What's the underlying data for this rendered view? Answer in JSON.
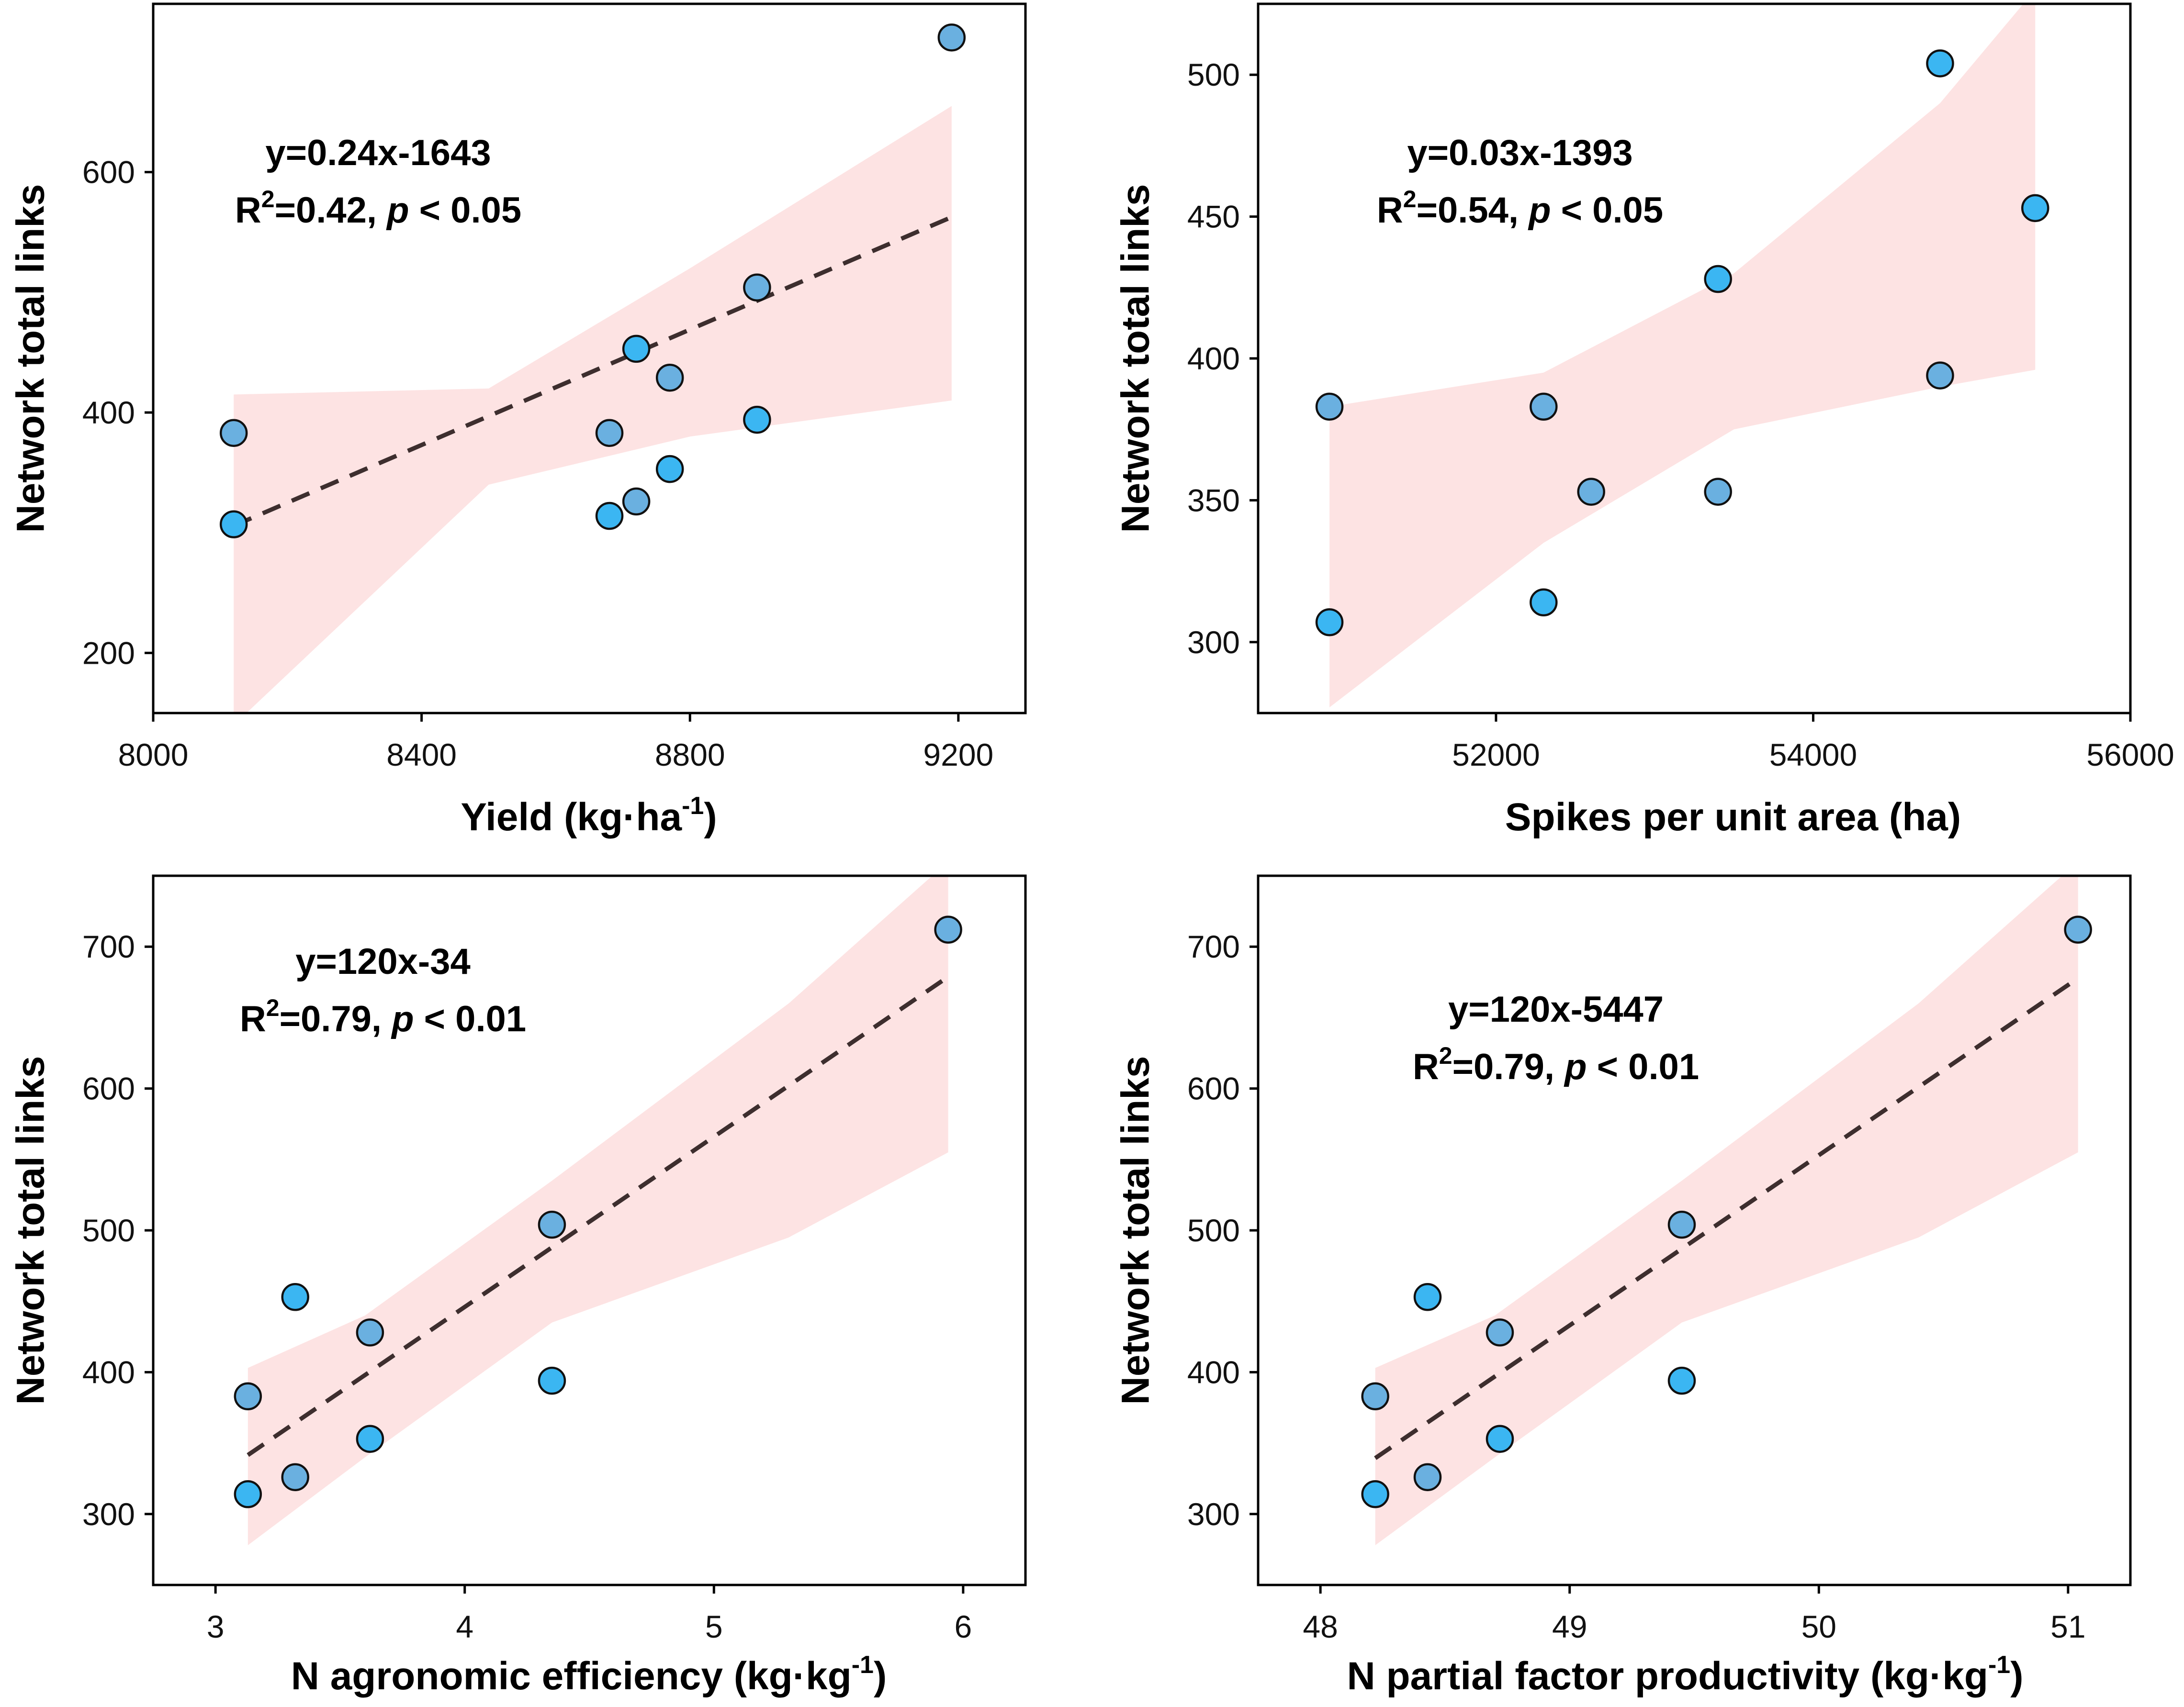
{
  "chart_data": [
    {
      "type": "scatter",
      "title": "",
      "xlabel": "Yield (kg·ha",
      "xlabel_sup": "-1",
      "xlabel_tail": ")",
      "ylabel": "Network total links",
      "xlim": [
        8000,
        9300
      ],
      "ylim": [
        150,
        740
      ],
      "xticks": [
        8000,
        8400,
        8800,
        9200
      ],
      "yticks": [
        200,
        400,
        600
      ],
      "equation": "y=0.24x-1643",
      "r2_prefix": "R",
      "r2_sup": "2",
      "r2_value": "=0.42, ",
      "p_label": "p",
      "p_value": " < 0.05",
      "fit": {
        "slope": 0.24,
        "intercept": -1643,
        "x_range": [
          8120,
          9190
        ]
      },
      "ci": {
        "x": [
          8120,
          8500,
          8800,
          9190
        ],
        "upper": [
          415,
          420,
          520,
          655
        ],
        "lower": [
          140,
          340,
          380,
          410
        ]
      },
      "points": {
        "x": [
          8120,
          8120,
          8680,
          8680,
          8720,
          8720,
          8770,
          8770,
          8900,
          8900,
          9190
        ],
        "y": [
          383,
          307,
          383,
          314,
          326,
          453,
          429,
          353,
          504,
          394,
          712
        ]
      }
    },
    {
      "type": "scatter",
      "title": "",
      "xlabel": "Spikes per unit area (ha)",
      "xlabel_sup": "",
      "xlabel_tail": "",
      "ylabel": "Network total links",
      "xlim": [
        50500,
        56000
      ],
      "ylim": [
        275,
        525
      ],
      "xticks": [
        52000,
        54000,
        56000
      ],
      "yticks": [
        300,
        350,
        400,
        450,
        500
      ],
      "equation": "y=0.03x-1393",
      "r2_prefix": "R",
      "r2_sup": "2",
      "r2_value": "=0.54, ",
      "p_label": "p",
      "p_value": " < 0.05",
      "fit": {
        "slope": 0.03,
        "intercept": -1393,
        "x_range": [
          50950,
          55400
        ]
      },
      "ci": {
        "x": [
          50950,
          52300,
          53500,
          54800,
          55400
        ],
        "upper": [
          383,
          395,
          430,
          490,
          530
        ],
        "lower": [
          277,
          335,
          375,
          390,
          396
        ]
      },
      "points": {
        "x": [
          50950,
          50950,
          52300,
          52300,
          52600,
          53400,
          53400,
          54800,
          54800,
          55400
        ],
        "y": [
          383,
          307,
          383,
          314,
          353,
          428,
          353,
          504,
          394,
          453
        ]
      }
    },
    {
      "type": "scatter",
      "title": "",
      "xlabel": "N agronomic efficiency  (kg·kg",
      "xlabel_sup": "-1",
      "xlabel_tail": ")",
      "ylabel": "Network total links",
      "xlim": [
        2.75,
        6.25
      ],
      "ylim": [
        250,
        750
      ],
      "xticks": [
        3,
        4,
        5,
        6
      ],
      "yticks": [
        300,
        400,
        500,
        600,
        700
      ],
      "equation": "y=120x-34",
      "r2_prefix": "R",
      "r2_sup": "2",
      "r2_value": "=0.79, ",
      "p_label": "p",
      "p_value": " < 0.01",
      "fit": {
        "slope": 120,
        "intercept": -34,
        "x_range": [
          3.13,
          5.94
        ]
      },
      "ci": {
        "x": [
          3.13,
          3.6,
          4.35,
          5.3,
          5.94
        ],
        "upper": [
          403,
          440,
          535,
          660,
          760
        ],
        "lower": [
          278,
          340,
          435,
          495,
          555
        ]
      },
      "points": {
        "x": [
          3.13,
          3.13,
          3.32,
          3.32,
          3.62,
          3.62,
          4.35,
          4.35,
          5.94
        ],
        "y": [
          383,
          314,
          326,
          453,
          428,
          353,
          504,
          394,
          712
        ]
      }
    },
    {
      "type": "scatter",
      "title": "",
      "xlabel": "N partial factor productivity (kg·kg",
      "xlabel_sup": "-1",
      "xlabel_tail": ")",
      "ylabel": "Network total links",
      "xlim": [
        47.75,
        51.25
      ],
      "ylim": [
        250,
        750
      ],
      "xticks": [
        48,
        49,
        50,
        51
      ],
      "yticks": [
        300,
        400,
        500,
        600,
        700
      ],
      "equation": "y=120x-5447",
      "r2_prefix": "R",
      "r2_sup": "2",
      "r2_value": "=0.79, ",
      "p_label": "p",
      "p_value": " < 0.01",
      "fit": {
        "slope": 120,
        "intercept": -5447,
        "x_range": [
          48.22,
          51.04
        ]
      },
      "ci": {
        "x": [
          48.22,
          48.7,
          49.45,
          50.4,
          51.04
        ],
        "upper": [
          403,
          440,
          535,
          660,
          760
        ],
        "lower": [
          278,
          340,
          435,
          495,
          555
        ]
      },
      "points": {
        "x": [
          48.22,
          48.22,
          48.43,
          48.43,
          48.72,
          48.72,
          49.45,
          49.45,
          51.04
        ],
        "y": [
          383,
          314,
          326,
          453,
          428,
          353,
          504,
          394,
          712
        ]
      }
    }
  ],
  "colors": {
    "point_fill": "#3bb6f2",
    "point_fill_alt": "#6ab0e0",
    "point_stroke": "#111111",
    "fit_line": "#3d2e2e",
    "ci_band": "#fde3e3",
    "axis": "#000000"
  }
}
